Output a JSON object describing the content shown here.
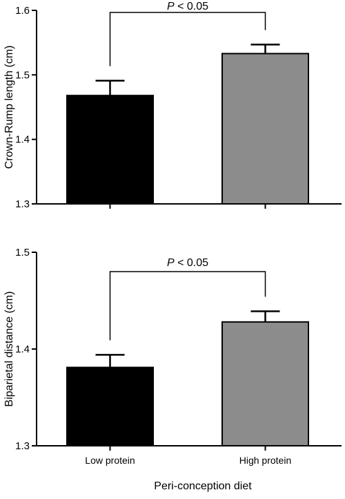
{
  "chart_data": [
    {
      "type": "bar",
      "categories": [
        "Low protein",
        "High protein"
      ],
      "values": [
        1.468,
        1.533
      ],
      "errors": [
        0.023,
        0.014
      ],
      "colors": [
        "#000000",
        "#8c8c8c"
      ],
      "ylabel": "Crown-Rump length (cm)",
      "xlabel": "",
      "ylim": [
        1.3,
        1.6
      ],
      "yticks": [
        "1.3",
        "1.4",
        "1.5",
        "1.6"
      ],
      "show_category_labels": false,
      "significance": {
        "prefix": "P",
        "suffix": " < 0.05"
      }
    },
    {
      "type": "bar",
      "categories": [
        "Low protein",
        "High protein"
      ],
      "values": [
        1.381,
        1.428
      ],
      "errors": [
        0.013,
        0.011
      ],
      "colors": [
        "#000000",
        "#8c8c8c"
      ],
      "ylabel": "Biparietal distance (cm)",
      "xlabel": "Peri-conception diet",
      "ylim": [
        1.3,
        1.5
      ],
      "yticks": [
        "1.3",
        "1.4",
        "1.5"
      ],
      "show_category_labels": true,
      "significance": {
        "prefix": "P",
        "suffix": " < 0.05"
      }
    }
  ]
}
